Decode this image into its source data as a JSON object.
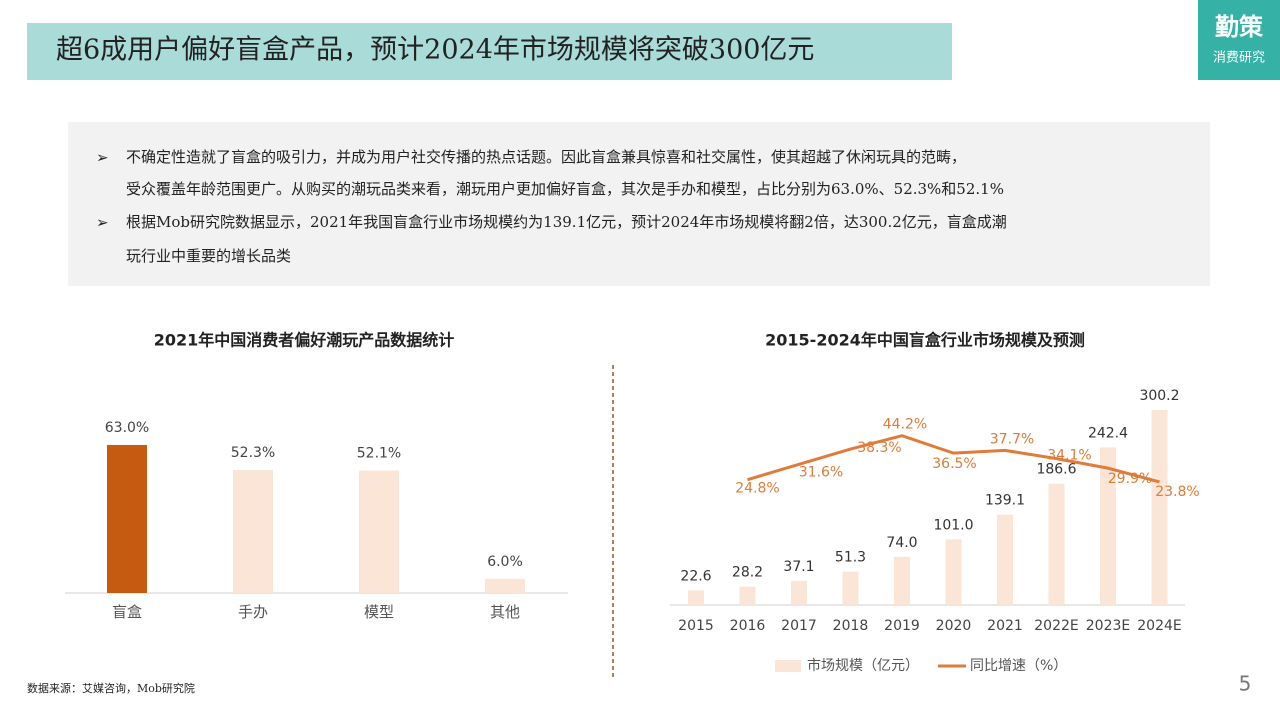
{
  "header": {
    "title": "超6成用户偏好盲盒产品，预计2024年市场规模将突破300亿元"
  },
  "logo": {
    "name": "勤策",
    "sub": "消费研究"
  },
  "bullets": [
    [
      "不确定性造就了盲盒的吸引力，并成为用户社交传播的热点话题。因此盲盒兼具惊喜和社交属性，使其超越了休闲玩具的范畴，",
      "受众覆盖年龄范围更广。从购买的潮玩品类来看，潮玩用户更加偏好盲盒，其次是手办和模型，占比分别为63.0%、52.3%和52.1%"
    ],
    [
      "根据Mob研究院数据显示，2021年我国盲盒行业市场规模约为139.1亿元，预计2024年市场规模将翻2倍，达300.2亿元，盲盒成潮",
      "玩行业中重要的增长品类"
    ]
  ],
  "chart_data": [
    {
      "type": "bar",
      "title": "2021年中国消费者偏好潮玩产品数据统计",
      "categories": [
        "盲盒",
        "手办",
        "模型",
        "其他"
      ],
      "values": [
        63.0,
        52.3,
        52.1,
        6.0
      ],
      "value_labels": [
        "63.0%",
        "52.3%",
        "52.1%",
        "6.0%"
      ],
      "colors": [
        "#c55a11",
        "#fbe5d6",
        "#fbe5d6",
        "#fbe5d6"
      ]
    },
    {
      "type": "bar_line",
      "title": "2015-2024年中国盲盒行业市场规模及预测",
      "categories": [
        "2015",
        "2016",
        "2017",
        "2018",
        "2019",
        "2020",
        "2021",
        "2022E",
        "2023E",
        "2024E"
      ],
      "series": [
        {
          "name": "市场规模（亿元）",
          "type": "bar",
          "color": "#fbe5d6",
          "values": [
            22.6,
            28.2,
            37.1,
            51.3,
            74.0,
            101.0,
            139.1,
            186.6,
            242.4,
            300.2
          ],
          "value_labels": [
            "22.6",
            "28.2",
            "37.1",
            "51.3",
            "74.0",
            "101.0",
            "139.1",
            "186.6",
            "242.4",
            "300.2"
          ]
        },
        {
          "name": "同比增速（%）",
          "type": "line",
          "axis": "y2",
          "color": "#e07b39",
          "values": [
            null,
            24.8,
            31.6,
            38.3,
            44.2,
            36.5,
            37.7,
            34.1,
            29.9,
            23.8
          ],
          "value_labels": [
            null,
            "24.8%",
            "31.6%",
            "38.3%",
            "44.2%",
            "36.5%",
            "37.7%",
            "34.1%",
            "29.9%",
            "23.8%"
          ]
        }
      ]
    }
  ],
  "source": "数据来源：艾媒咨询，Mob研究院",
  "page_number": 5
}
